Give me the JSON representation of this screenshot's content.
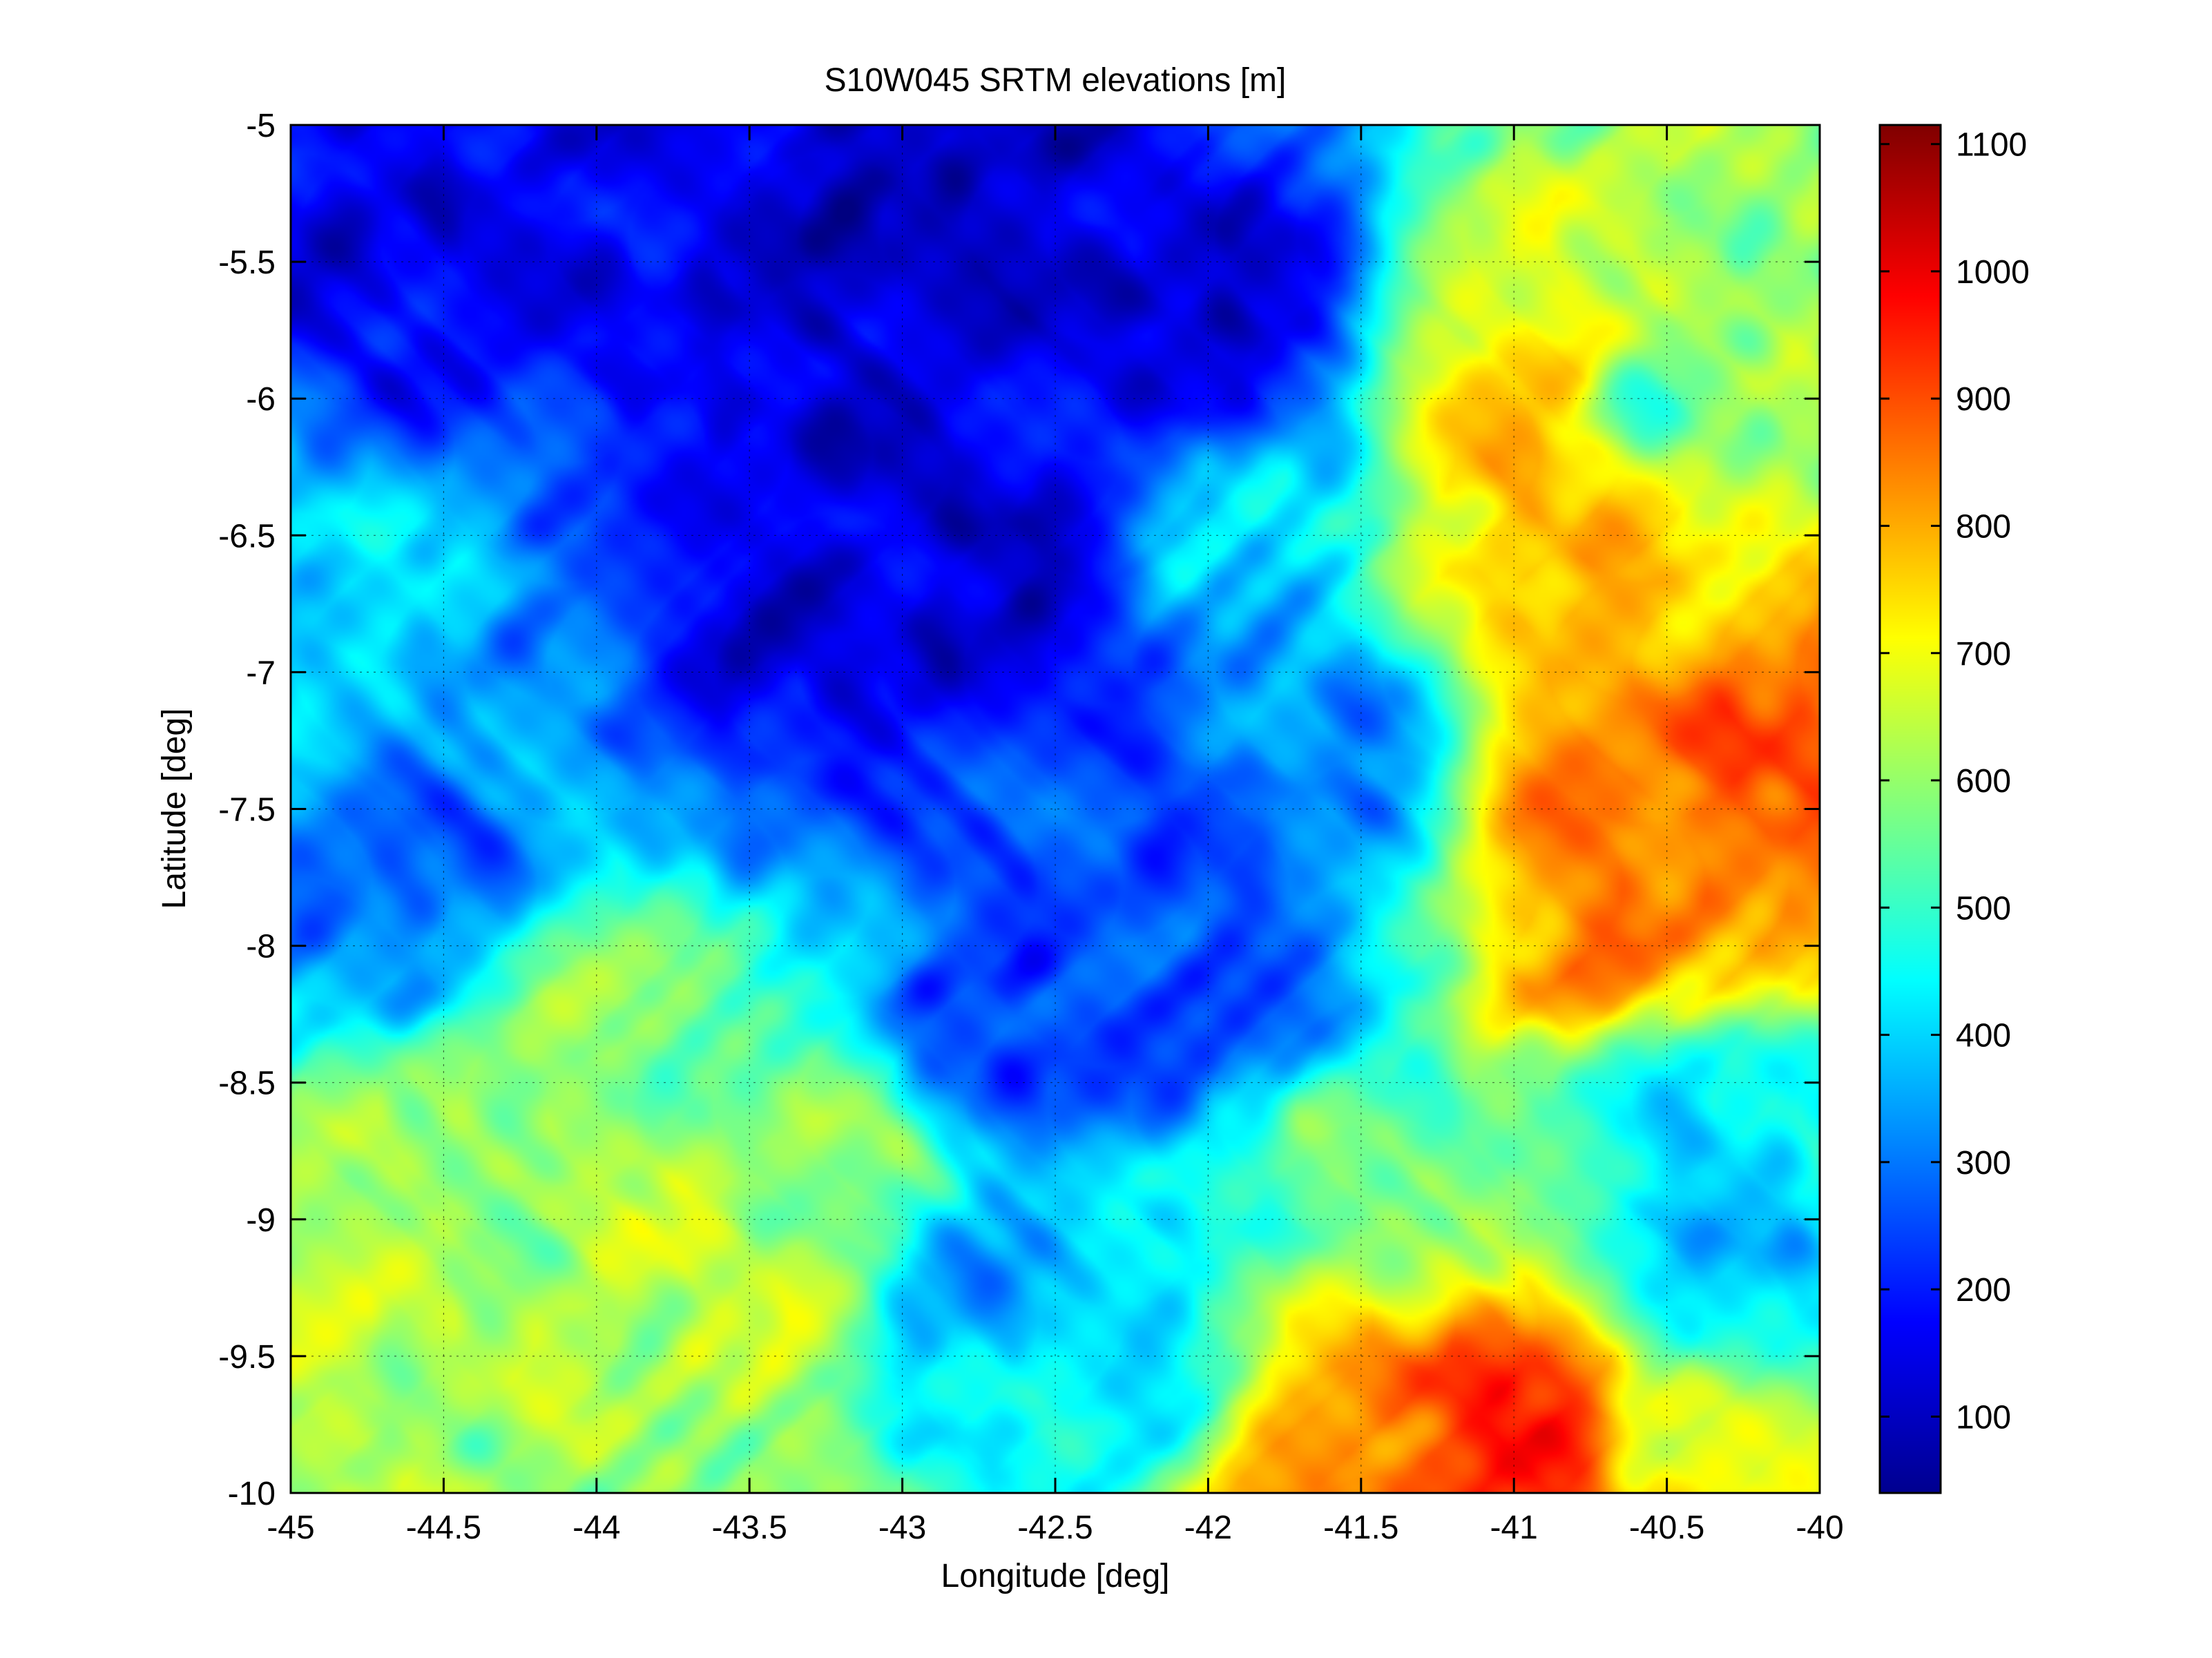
{
  "chart_data": {
    "type": "heatmap",
    "title": "S10W045 SRTM elevations [m]",
    "xlabel": "Longitude [deg]",
    "ylabel": "Latitude [deg]",
    "xlim": [
      -45,
      -40
    ],
    "ylim": [
      -10,
      -5
    ],
    "x_ticks": [
      -45,
      -44.5,
      -44,
      -43.5,
      -43,
      -42.5,
      -42,
      -41.5,
      -41,
      -40.5,
      -40
    ],
    "y_ticks": [
      -5,
      -5.5,
      -6,
      -6.5,
      -7,
      -7.5,
      -8,
      -8.5,
      -9,
      -9.5,
      -10
    ],
    "grid": true,
    "colormap": "jet",
    "colorbar": {
      "range": [
        40,
        1115
      ],
      "ticks": [
        100,
        200,
        300,
        400,
        500,
        600,
        700,
        800,
        900,
        1000,
        1100
      ]
    },
    "z_units": "m",
    "terrain_features": [
      {
        "lon": -42.9,
        "lat": -5.35,
        "elev": 120
      },
      {
        "lon": -44.5,
        "lat": -5.4,
        "elev": 170
      },
      {
        "lon": -43.0,
        "lat": -6.3,
        "elev": 150
      },
      {
        "lon": -42.6,
        "lat": -6.7,
        "elev": 140
      },
      {
        "lon": -43.5,
        "lat": -6.9,
        "elev": 160
      },
      {
        "lon": -42.0,
        "lat": -5.7,
        "elev": 140
      },
      {
        "lon": -41.85,
        "lat": -6.55,
        "elev": 430
      },
      {
        "lon": -40.85,
        "lat": -5.9,
        "elev": 760
      },
      {
        "lon": -40.82,
        "lat": -6.3,
        "elev": 820
      },
      {
        "lon": -40.85,
        "lat": -6.6,
        "elev": 780
      },
      {
        "lon": -40.5,
        "lat": -7.4,
        "elev": 880
      },
      {
        "lon": -40.2,
        "lat": -7.35,
        "elev": 900
      },
      {
        "lon": -40.62,
        "lat": -7.5,
        "elev": 860
      },
      {
        "lon": -40.6,
        "lat": -8.0,
        "elev": 850
      },
      {
        "lon": -40.1,
        "lat": -5.7,
        "elev": 620
      },
      {
        "lon": -40.6,
        "lat": -6.0,
        "elev": 540
      },
      {
        "lon": -44.0,
        "lat": -8.2,
        "elev": 600
      },
      {
        "lon": -44.4,
        "lat": -8.7,
        "elev": 620
      },
      {
        "lon": -44.85,
        "lat": -9.3,
        "elev": 650
      },
      {
        "lon": -43.6,
        "lat": -9.25,
        "elev": 680
      },
      {
        "lon": -43.2,
        "lat": -8.8,
        "elev": 600
      },
      {
        "lon": -44.0,
        "lat": -9.7,
        "elev": 630
      },
      {
        "lon": -41.5,
        "lat": -8.75,
        "elev": 570
      },
      {
        "lon": -41.2,
        "lat": -9.85,
        "elev": 900
      },
      {
        "lon": -40.9,
        "lat": -9.9,
        "elev": 950
      },
      {
        "lon": -41.0,
        "lat": -9.95,
        "elev": 1050
      },
      {
        "lon": -41.6,
        "lat": -9.95,
        "elev": 820
      },
      {
        "lon": -42.3,
        "lat": -9.55,
        "elev": 440
      },
      {
        "lon": -42.7,
        "lat": -9.2,
        "elev": 380
      },
      {
        "lon": -44.1,
        "lat": -7.3,
        "elev": 350
      },
      {
        "lon": -44.8,
        "lat": -6.8,
        "elev": 420
      },
      {
        "lon": -41.9,
        "lat": -8.2,
        "elev": 280
      },
      {
        "lon": -42.6,
        "lat": -8.3,
        "elev": 240
      },
      {
        "lon": -44.6,
        "lat": -7.8,
        "elev": 300
      },
      {
        "lon": -40.4,
        "lat": -8.6,
        "elev": 420
      },
      {
        "lon": -40.3,
        "lat": -9.2,
        "elev": 400
      },
      {
        "lon": -40.5,
        "lat": -9.9,
        "elev": 700
      },
      {
        "lon": -41.6,
        "lat": -7.3,
        "elev": 330
      },
      {
        "lon": -42.2,
        "lat": -7.5,
        "elev": 260
      }
    ]
  }
}
